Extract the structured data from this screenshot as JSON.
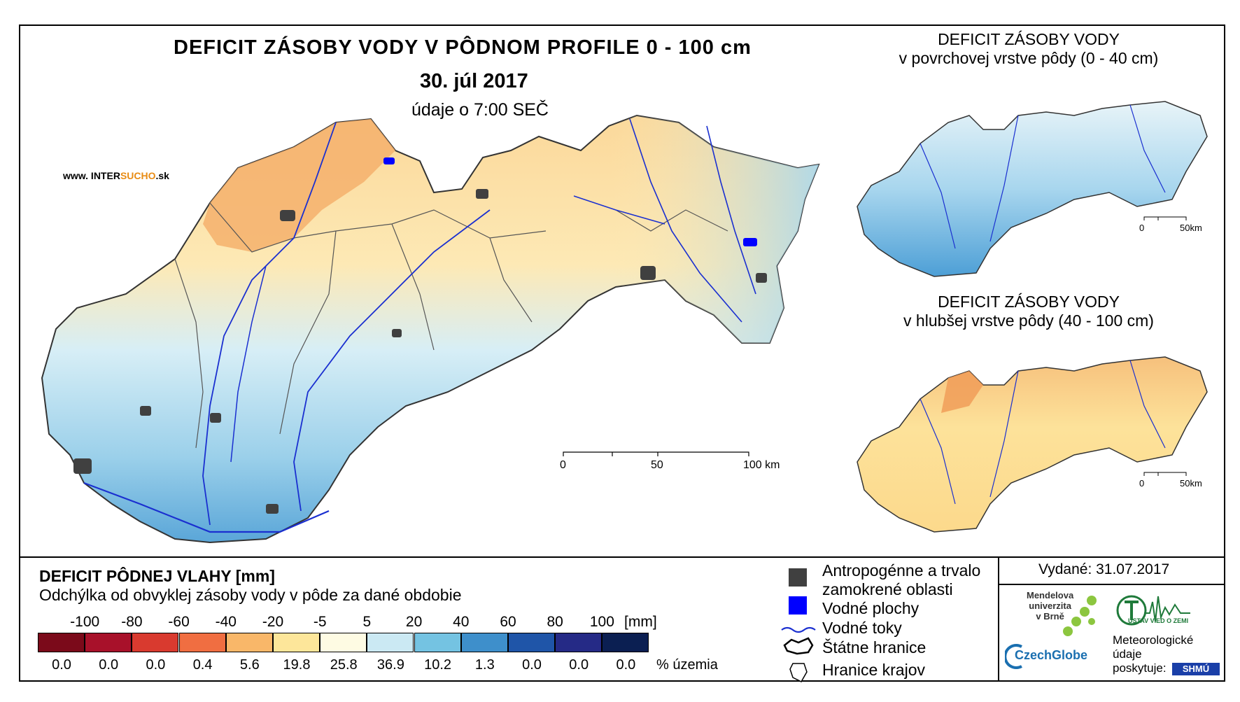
{
  "title": {
    "main": "DEFICIT ZÁSOBY VODY V PÔDNOM PROFILE 0 - 100 cm",
    "date": "30. júl 2017",
    "time": "údaje o 7:00 SEČ"
  },
  "website": {
    "prefix": "www. INTER",
    "highlight": "SUCHO",
    "suffix": ".sk"
  },
  "main_scale": {
    "labels": [
      "0",
      "50",
      "100 km"
    ]
  },
  "insets": [
    {
      "title_line1": "DEFICIT ZÁSOBY VODY",
      "title_line2": "v povrchovej vrstve pôdy (0 - 40 cm)",
      "scale_labels": [
        "0",
        "50km"
      ]
    },
    {
      "title_line1": "DEFICIT ZÁSOBY VODY",
      "title_line2": "v hlubšej vrstve pôdy (40 - 100 cm)",
      "scale_labels": [
        "0",
        "50km"
      ]
    }
  ],
  "legend": {
    "title": "DEFICIT PÔDNEJ VLAHY [mm]",
    "subtitle": "Odchýlka od obvyklej zásoby vody v pôde za dané obdobie",
    "breaks": [
      "-100",
      "-80",
      "-60",
      "-40",
      "-20",
      "-5",
      "5",
      "20",
      "40",
      "60",
      "80",
      "100"
    ],
    "unit": "[mm]",
    "classes": [
      {
        "color": "#7b0a1a",
        "percent": "0.0"
      },
      {
        "color": "#a8112a",
        "percent": "0.0"
      },
      {
        "color": "#d93a2f",
        "percent": "0.0"
      },
      {
        "color": "#f06e41",
        "percent": "0.4"
      },
      {
        "color": "#f9b769",
        "percent": "5.6"
      },
      {
        "color": "#fde69a",
        "percent": "19.8"
      },
      {
        "color": "#fefbe3",
        "percent": "25.8"
      },
      {
        "color": "#cbe9f3",
        "percent": "36.9"
      },
      {
        "color": "#74c3e2",
        "percent": "10.2"
      },
      {
        "color": "#3e8fcb",
        "percent": "1.3"
      },
      {
        "color": "#1f55a8",
        "percent": "0.0"
      },
      {
        "color": "#252a86",
        "percent": "0.0"
      },
      {
        "color": "#0b1f52",
        "percent": "0.0"
      }
    ],
    "percent_unit": "% územia"
  },
  "symbols": {
    "urban_line1": "Antropogénne a trvalo",
    "urban_line2": "zamokrené oblasti",
    "water_bodies": "Vodné plochy",
    "rivers": "Vodné toky",
    "state_border": "Štátne hranice",
    "region_border": "Hranice krajov"
  },
  "issued": "Vydané: 31.07.2017",
  "logos": {
    "mendel_line1": "Mendelova",
    "mendel_line2": "univerzita",
    "mendel_line3": "v Brně",
    "czechglobe": "CzechGlobe",
    "ustav": "ÚSTAV VIED O ZEMI",
    "meteo_line1": "Meteorologické",
    "meteo_line2": "údaje",
    "meteo_line3": "poskytuje:",
    "shmu": "SHMÚ"
  },
  "colors": {
    "urban": "#404040",
    "water": "#0000ff",
    "river": "#1a2fd0",
    "border": "#000000"
  }
}
